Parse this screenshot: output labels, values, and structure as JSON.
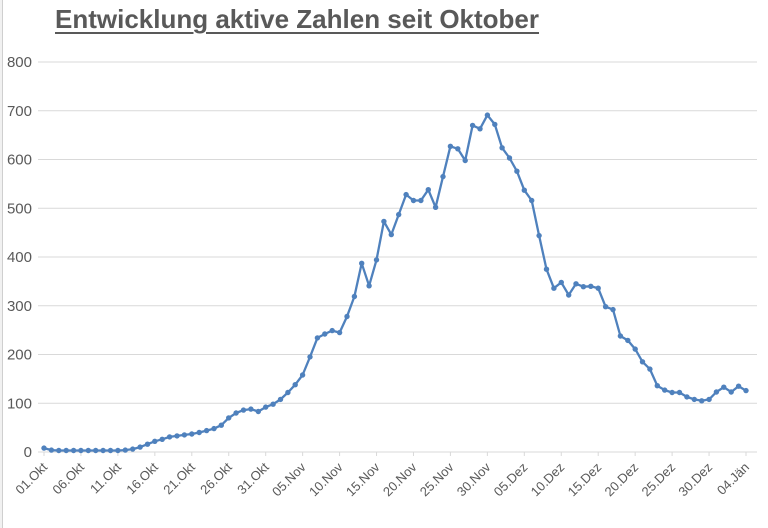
{
  "chart_data": {
    "type": "line",
    "title": "Entwicklung aktive Zahlen seit Oktober",
    "legend": "none",
    "grid": "horizontal",
    "marker": "circle",
    "ylim": [
      0,
      800
    ],
    "y_ticks": [
      0,
      100,
      200,
      300,
      400,
      500,
      600,
      700,
      800
    ],
    "x_tick_interval_days": 5,
    "x_tick_labels": [
      "01.Okt",
      "06.Okt",
      "11.Okt",
      "16.Okt",
      "21.Okt",
      "26.Okt",
      "31.Okt",
      "05.Nov",
      "10.Nov",
      "15.Nov",
      "20.Nov",
      "25.Nov",
      "30.Nov",
      "05.Dez",
      "10.Dez",
      "15.Dez",
      "20.Dez",
      "25.Dez",
      "30.Dez",
      "04.Jän"
    ],
    "colors": {
      "line": "#4f81bd",
      "gridline": "#d9d9d9",
      "axis_label": "#595959",
      "title": "#595959"
    },
    "values": [
      8,
      4,
      3,
      3,
      3,
      3,
      3,
      3,
      3,
      3,
      3,
      4,
      6,
      10,
      16,
      22,
      26,
      31,
      33,
      35,
      37,
      40,
      44,
      48,
      55,
      70,
      80,
      86,
      88,
      83,
      92,
      98,
      108,
      122,
      138,
      158,
      195,
      234,
      242,
      249,
      245,
      278,
      319,
      387,
      341,
      394,
      473,
      446,
      487,
      528,
      516,
      516,
      538,
      502,
      565,
      627,
      622,
      598,
      670,
      663,
      691,
      672,
      624,
      603,
      576,
      537,
      516,
      444,
      375,
      336,
      348,
      322,
      345,
      339,
      340,
      336,
      298,
      292,
      238,
      229,
      211,
      185,
      170,
      136,
      127,
      122,
      122,
      113,
      108,
      105,
      108,
      123,
      133,
      123,
      135,
      126
    ]
  }
}
